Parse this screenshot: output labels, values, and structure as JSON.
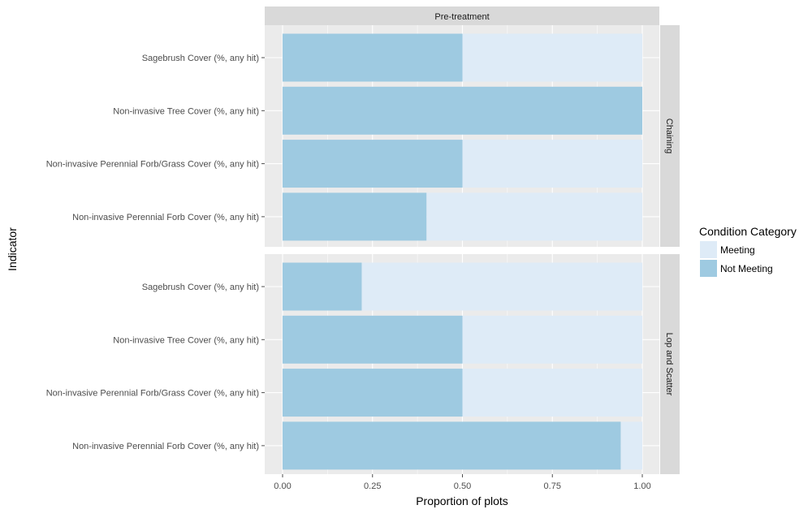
{
  "chart_data": {
    "type": "bar",
    "orientation": "horizontal",
    "stacked": true,
    "column_facet": "Pre-treatment",
    "xlabel": "Proportion of plots",
    "ylabel": "Indicator",
    "xlim": [
      0,
      1
    ],
    "x_ticks": [
      "0.00",
      "0.25",
      "0.50",
      "0.75",
      "1.00"
    ],
    "x_tick_values": [
      0,
      0.25,
      0.5,
      0.75,
      1.0
    ],
    "grid": true,
    "legend": {
      "title": "Condition Category",
      "position": "right",
      "entries": [
        {
          "label": "Meeting",
          "color": "#deebf7"
        },
        {
          "label": "Not Meeting",
          "color": "#9ecae1"
        }
      ]
    },
    "colors": {
      "panel_bg": "#ebebeb",
      "strip_bg": "#d9d9d9",
      "grid": "#ffffff",
      "meeting": "#deebf7",
      "not_meeting": "#9ecae1"
    },
    "panels": [
      {
        "strip": "Chaining",
        "categories": [
          "Sagebrush Cover  (%, any hit)",
          "Non-invasive Tree Cover  (%, any hit)",
          "Non-invasive Perennial Forb/Grass Cover  (%, any hit)",
          "Non-invasive Perennial Forb Cover  (%, any hit)"
        ],
        "series": [
          {
            "name": "Not Meeting",
            "values": [
              0.5,
              1.0,
              0.5,
              0.4
            ]
          },
          {
            "name": "Meeting",
            "values": [
              0.5,
              0.0,
              0.5,
              0.6
            ]
          }
        ]
      },
      {
        "strip": "Lop and Scatter",
        "categories": [
          "Sagebrush Cover  (%, any hit)",
          "Non-invasive Tree Cover  (%, any hit)",
          "Non-invasive Perennial Forb/Grass Cover  (%, any hit)",
          "Non-invasive Perennial Forb Cover  (%, any hit)"
        ],
        "series": [
          {
            "name": "Not Meeting",
            "values": [
              0.22,
              0.5,
              0.5,
              0.94
            ]
          },
          {
            "name": "Meeting",
            "values": [
              0.78,
              0.5,
              0.5,
              0.06
            ]
          }
        ]
      }
    ]
  }
}
